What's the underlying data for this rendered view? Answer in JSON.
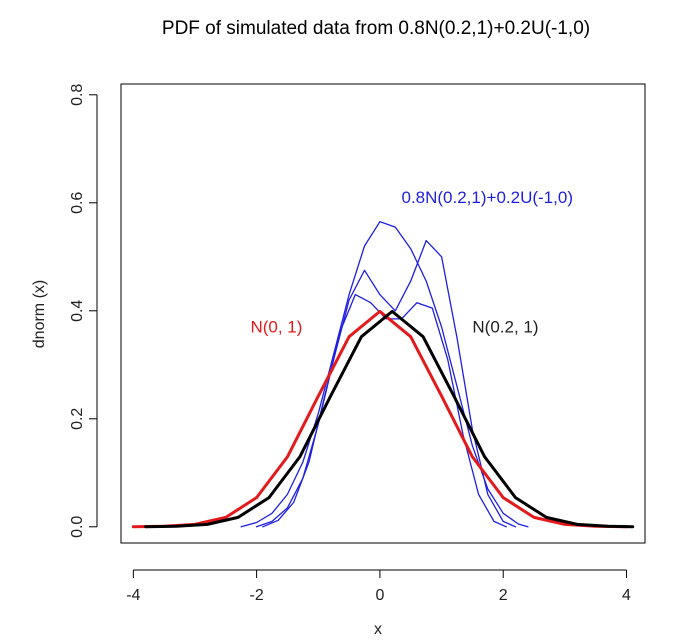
{
  "chart_data": {
    "type": "line",
    "title": "PDF of simulated data from 0.8N(0.2,1)+0.2U(-1,0)",
    "xlabel": "x",
    "ylabel": "dnorm (x)",
    "xlim": [
      -4.2,
      4.3
    ],
    "ylim": [
      -0.03,
      0.82
    ],
    "xticks": [
      -4,
      -2,
      0,
      2,
      4
    ],
    "xtick_labels": [
      "-4",
      "-2",
      "0",
      "2",
      "4"
    ],
    "yticks": [
      0.0,
      0.2,
      0.4,
      0.6,
      0.8
    ],
    "ytick_labels": [
      "0.0",
      "0.2",
      "0.4",
      "0.6",
      "0.8"
    ],
    "grid": false,
    "series": [
      {
        "name": "N(0, 1)",
        "color": "#e31a1c",
        "width": 3,
        "x": [
          -4,
          -3.5,
          -3,
          -2.5,
          -2,
          -1.5,
          -1,
          -0.5,
          0,
          0.5,
          1,
          1.5,
          2,
          2.5,
          3,
          3.5,
          4
        ],
        "y": [
          0.0001,
          0.0009,
          0.0044,
          0.0175,
          0.054,
          0.1295,
          0.242,
          0.3521,
          0.3989,
          0.3521,
          0.242,
          0.1295,
          0.054,
          0.0175,
          0.0044,
          0.0009,
          0.0001
        ]
      },
      {
        "name": "N(0.2, 1)",
        "color": "#000000",
        "width": 3,
        "x": [
          -3.8,
          -3.3,
          -2.8,
          -2.3,
          -1.8,
          -1.3,
          -0.8,
          -0.3,
          0.2,
          0.7,
          1.2,
          1.7,
          2.2,
          2.7,
          3.2,
          3.7,
          4.1
        ],
        "y": [
          0.0001,
          0.0009,
          0.0044,
          0.0175,
          0.054,
          0.1295,
          0.242,
          0.3521,
          0.3989,
          0.3521,
          0.242,
          0.1295,
          0.054,
          0.0175,
          0.0044,
          0.0009,
          0.0002
        ]
      },
      {
        "name": "0.8N(0.2,1)+0.2U(-1,0)",
        "color": "#1f1fe0",
        "width": 1.3,
        "x": [
          -2.25,
          -2.0,
          -1.75,
          -1.5,
          -1.25,
          -1.0,
          -0.75,
          -0.5,
          -0.25,
          0.0,
          0.25,
          0.5,
          0.75,
          1.0,
          1.25,
          1.5,
          1.75,
          2.0,
          2.25,
          2.4
        ],
        "y": [
          0.0,
          0.008,
          0.025,
          0.06,
          0.12,
          0.21,
          0.32,
          0.43,
          0.52,
          0.565,
          0.555,
          0.515,
          0.455,
          0.37,
          0.26,
          0.15,
          0.07,
          0.025,
          0.005,
          0.0
        ]
      },
      {
        "name": "0.8N(0.2,1)+0.2U(-1,0)",
        "color": "#1f1fe0",
        "width": 1.3,
        "x": [
          -2.0,
          -1.75,
          -1.5,
          -1.25,
          -1.0,
          -0.75,
          -0.5,
          -0.25,
          0.0,
          0.25,
          0.5,
          0.75,
          1.0,
          1.25,
          1.5,
          1.75,
          2.0,
          2.2
        ],
        "y": [
          0.0,
          0.01,
          0.035,
          0.09,
          0.19,
          0.31,
          0.42,
          0.475,
          0.43,
          0.4,
          0.455,
          0.53,
          0.5,
          0.35,
          0.18,
          0.06,
          0.01,
          0.0
        ]
      },
      {
        "name": "0.8N(0.2,1)+0.2U(-1,0)",
        "color": "#1f1fe0",
        "width": 1.3,
        "x": [
          -1.9,
          -1.65,
          -1.4,
          -1.15,
          -0.9,
          -0.65,
          -0.4,
          -0.15,
          0.1,
          0.35,
          0.6,
          0.85,
          1.1,
          1.35,
          1.6,
          1.85,
          2.05
        ],
        "y": [
          0.0,
          0.012,
          0.045,
          0.12,
          0.24,
          0.36,
          0.43,
          0.415,
          0.385,
          0.385,
          0.415,
          0.405,
          0.31,
          0.17,
          0.06,
          0.01,
          0.0
        ]
      }
    ],
    "annotations": [
      {
        "text": "N(0, 1)",
        "x": -2.1,
        "y": 0.36,
        "color": "#e31a1c",
        "anchor": "start"
      },
      {
        "text": "N(0.2, 1)",
        "x": 1.5,
        "y": 0.36,
        "color": "#222222",
        "anchor": "start"
      },
      {
        "text": "0.8N(0.2,1)+0.2U(-1,0)",
        "x": 0.35,
        "y": 0.6,
        "color": "#1f1fe0",
        "anchor": "start"
      }
    ]
  }
}
